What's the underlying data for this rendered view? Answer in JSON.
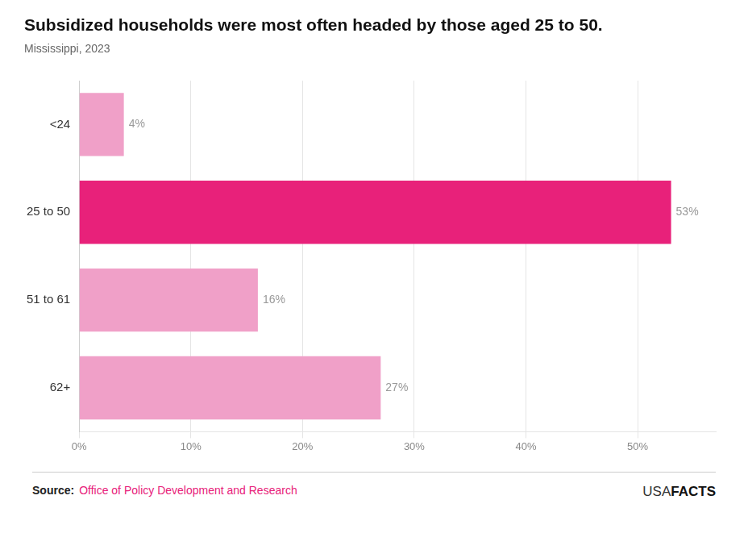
{
  "chart_data": {
    "type": "bar",
    "orientation": "horizontal",
    "title": "Subsidized households were most often headed by those aged 25 to 50.",
    "subtitle": "Mississippi, 2023",
    "categories": [
      "62+",
      "51 to 61",
      "25 to 50",
      "<24"
    ],
    "values": [
      27,
      16,
      53,
      4
    ],
    "value_labels": [
      "27%",
      "16%",
      "53%",
      "4%"
    ],
    "colors": [
      "#f0a0c8",
      "#f0a0c8",
      "#e8217a",
      "#f0a0c8"
    ],
    "xlim": [
      0,
      57
    ],
    "xticks": [
      {
        "value": 0,
        "label": "0%"
      },
      {
        "value": 10,
        "label": "10%"
      },
      {
        "value": 20,
        "label": "20%"
      },
      {
        "value": 30,
        "label": "30%"
      },
      {
        "value": 40,
        "label": "40%"
      },
      {
        "value": 50,
        "label": "50%"
      }
    ],
    "grid": true,
    "data_labels": true,
    "annotations": [
      {
        "text": "Source:",
        "color": "#222222"
      },
      {
        "text": "Office of Policy Development and Research",
        "color": "#e8217a"
      },
      {
        "text": "USA",
        "color": "#333333"
      },
      {
        "text": "FACTS",
        "color": "#111111"
      }
    ]
  }
}
